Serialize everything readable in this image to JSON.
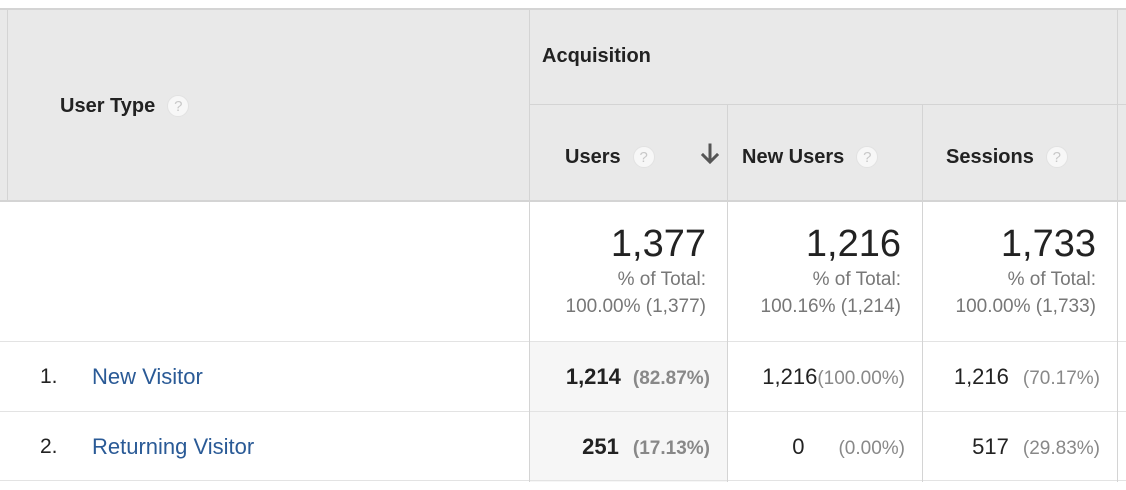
{
  "header": {
    "dimension_label": "User Type",
    "group_label": "Acquisition",
    "columns": [
      {
        "label": "Users"
      },
      {
        "label": "New Users"
      },
      {
        "label": "Sessions"
      }
    ],
    "help_glyph": "?"
  },
  "totals": [
    {
      "value": "1,377",
      "pct_label": "% of Total:",
      "pct_detail": "100.00% (1,377)"
    },
    {
      "value": "1,216",
      "pct_label": "% of Total:",
      "pct_detail": "100.16% (1,214)"
    },
    {
      "value": "1,733",
      "pct_label": "% of Total:",
      "pct_detail": "100.00% (1,733)"
    }
  ],
  "rows": [
    {
      "num": "1.",
      "label": "New Visitor",
      "cells": [
        {
          "value": "1,214",
          "pct": "(82.87%)"
        },
        {
          "value": "1,216",
          "pct": "(100.00%)"
        },
        {
          "value": "1,216",
          "pct": "(70.17%)"
        }
      ]
    },
    {
      "num": "2.",
      "label": "Returning Visitor",
      "cells": [
        {
          "value": "251",
          "pct": "(17.13%)"
        },
        {
          "value": "0",
          "pct": "(0.00%)"
        },
        {
          "value": "517",
          "pct": "(29.83%)"
        }
      ]
    }
  ],
  "sort": {
    "column": "Users",
    "direction": "descending",
    "icon": "arrow-down-icon"
  }
}
